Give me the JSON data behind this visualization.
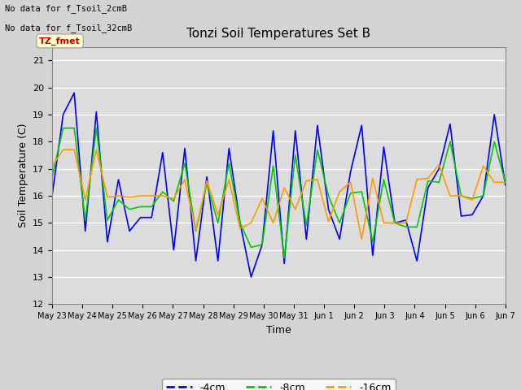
{
  "title": "Tonzi Soil Temperatures Set B",
  "xlabel": "Time",
  "ylabel": "Soil Temperature (C)",
  "ylim": [
    12.0,
    21.5
  ],
  "yticks": [
    12.0,
    13.0,
    14.0,
    15.0,
    16.0,
    17.0,
    18.0,
    19.0,
    20.0,
    21.0
  ],
  "fig_bg_color": "#d3d3d3",
  "plot_bg": "#dcdcdc",
  "grid_color": "white",
  "text_above": [
    "No data for f_Tsoil_2cmB",
    "No data for f_Tsoil_32cmB"
  ],
  "box_label": "TZ_fmet",
  "box_facecolor": "#ffffcc",
  "box_edgecolor": "#aaaaaa",
  "box_textcolor": "#cc0000",
  "legend_entries": [
    "-4cm",
    "-8cm",
    "-16cm"
  ],
  "line_colors": [
    "#0000ff",
    "#00cc00",
    "#ff9900"
  ],
  "xtick_labels": [
    "May 23",
    "May 24",
    "May 25",
    "May 26",
    "May 27",
    "May 28",
    "May 29",
    "May 30",
    "May 31",
    "Jun 1",
    "Jun 2",
    "Jun 3",
    "Jun 4",
    "Jun 5",
    "Jun 6",
    "Jun 7"
  ],
  "series_4cm": [
    16.0,
    19.0,
    19.8,
    14.7,
    19.1,
    14.3,
    16.6,
    14.7,
    15.2,
    15.2,
    17.6,
    14.0,
    17.75,
    13.6,
    16.7,
    13.6,
    17.75,
    15.0,
    13.0,
    14.2,
    18.4,
    13.5,
    18.4,
    14.4,
    18.6,
    15.5,
    14.4,
    16.9,
    18.6,
    13.8,
    17.8,
    15.0,
    15.1,
    13.6,
    16.3,
    17.0,
    18.65,
    15.25,
    15.3,
    16.0,
    19.0,
    16.4
  ],
  "series_8cm": [
    16.7,
    18.5,
    18.5,
    15.1,
    18.5,
    15.1,
    15.85,
    15.5,
    15.6,
    15.6,
    16.15,
    15.8,
    17.2,
    14.7,
    16.45,
    15.0,
    17.2,
    15.0,
    14.1,
    14.2,
    17.1,
    13.7,
    17.5,
    14.9,
    17.7,
    16.0,
    15.0,
    16.1,
    16.15,
    14.3,
    16.6,
    15.0,
    14.85,
    14.85,
    16.55,
    16.5,
    18.0,
    16.0,
    15.9,
    16.0,
    18.0,
    16.5
  ],
  "series_16cm": [
    17.1,
    17.7,
    17.7,
    15.85,
    17.7,
    15.95,
    16.0,
    15.95,
    16.0,
    16.0,
    16.0,
    15.9,
    16.6,
    14.75,
    16.55,
    15.3,
    16.6,
    14.8,
    15.0,
    15.9,
    15.0,
    16.3,
    15.5,
    16.55,
    16.6,
    15.05,
    16.15,
    16.5,
    14.4,
    16.65,
    15.0,
    15.0,
    15.0,
    16.6,
    16.65,
    17.15,
    16.0,
    16.0,
    15.85,
    17.1,
    16.5,
    16.5
  ]
}
